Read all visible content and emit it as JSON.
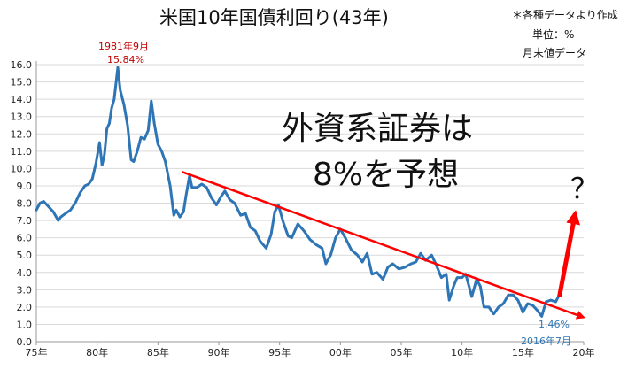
{
  "title": "米国10年国債利回り(43年)",
  "notes": {
    "source": "＊各種データより作成",
    "unit": "単位：%",
    "basis": "月末値データ"
  },
  "callout": {
    "line1": "外資系証券は",
    "line2": "8%を予想",
    "question": "？"
  },
  "annotations": {
    "peak_date": "1981年9月",
    "peak_value": "15.84%",
    "low_value": "1.46%",
    "low_date": "2016年7月"
  },
  "colors": {
    "series": "#2E75B6",
    "trend": "#FF0000",
    "peak_label": "#C00000",
    "low_label": "#2E75B6",
    "grid": "#d9d9d9"
  },
  "chart_data": {
    "type": "line",
    "title": "米国10年国債利回り(43年)",
    "xlabel": "",
    "ylabel": "",
    "xlim": [
      1975,
      2020
    ],
    "ylim": [
      0,
      16
    ],
    "y_ticks": [
      "0.0",
      "1.0",
      "2.0",
      "3.0",
      "4.0",
      "5.0",
      "6.0",
      "7.0",
      "8.0",
      "9.0",
      "10.0",
      "11.0",
      "12.0",
      "13.0",
      "14.0",
      "15.0",
      "16.0"
    ],
    "x_ticks": [
      {
        "x": 1975,
        "label": "75年"
      },
      {
        "x": 1980,
        "label": "80年"
      },
      {
        "x": 1985,
        "label": "85年"
      },
      {
        "x": 1990,
        "label": "90年"
      },
      {
        "x": 1995,
        "label": "95年"
      },
      {
        "x": 2000,
        "label": "00年"
      },
      {
        "x": 2005,
        "label": "05年"
      },
      {
        "x": 2010,
        "label": "10年"
      },
      {
        "x": 2015,
        "label": "15年"
      },
      {
        "x": 2020,
        "label": "20年"
      }
    ],
    "grid": "horizontal",
    "series": [
      {
        "x": [
          1975.0,
          1975.3,
          1975.6,
          1976.0,
          1976.4,
          1976.8,
          1977.0,
          1977.4,
          1977.8,
          1978.2,
          1978.6,
          1979.0,
          1979.3,
          1979.6,
          1979.9,
          1980.2,
          1980.4,
          1980.6,
          1980.8,
          1981.0,
          1981.2,
          1981.4,
          1981.7,
          1981.9,
          1982.2,
          1982.5,
          1982.8,
          1983.0,
          1983.3,
          1983.6,
          1983.9,
          1984.2,
          1984.45,
          1984.7,
          1985.0,
          1985.3,
          1985.6,
          1986.0,
          1986.3,
          1986.5,
          1986.8,
          1987.1,
          1987.3,
          1987.6,
          1987.8,
          1988.2,
          1988.6,
          1989.0,
          1989.4,
          1989.8,
          1990.2,
          1990.5,
          1990.9,
          1991.3,
          1991.8,
          1992.2,
          1992.6,
          1993.0,
          1993.4,
          1993.9,
          1994.3,
          1994.6,
          1994.9,
          1995.3,
          1995.7,
          1996.0,
          1996.5,
          1997.0,
          1997.5,
          1998.0,
          1998.5,
          1998.8,
          1999.2,
          1999.6,
          2000.0,
          2000.4,
          2000.9,
          2001.4,
          2001.8,
          2002.2,
          2002.6,
          2003.0,
          2003.5,
          2003.9,
          2004.3,
          2004.8,
          2005.3,
          2005.8,
          2006.2,
          2006.6,
          2007.0,
          2007.5,
          2007.9,
          2008.3,
          2008.7,
          2008.95,
          2009.3,
          2009.6,
          2010.0,
          2010.3,
          2010.8,
          2011.2,
          2011.5,
          2011.8,
          2012.2,
          2012.6,
          2013.0,
          2013.4,
          2013.8,
          2014.2,
          2014.6,
          2015.0,
          2015.4,
          2015.8,
          2016.2,
          2016.55,
          2016.9,
          2017.3,
          2017.7,
          2018.0
        ],
        "y": [
          7.6,
          8.0,
          8.1,
          7.8,
          7.5,
          7.0,
          7.2,
          7.4,
          7.6,
          8.0,
          8.6,
          9.0,
          9.1,
          9.4,
          10.3,
          11.5,
          10.2,
          10.8,
          12.3,
          12.6,
          13.5,
          14.0,
          15.84,
          14.5,
          13.7,
          12.5,
          10.5,
          10.4,
          11.0,
          11.8,
          11.7,
          12.2,
          13.9,
          12.6,
          11.4,
          11.0,
          10.4,
          9.0,
          7.3,
          7.6,
          7.2,
          7.5,
          8.4,
          9.6,
          8.9,
          8.9,
          9.1,
          8.9,
          8.3,
          7.9,
          8.4,
          8.7,
          8.2,
          8.0,
          7.3,
          7.4,
          6.6,
          6.4,
          5.8,
          5.4,
          6.2,
          7.5,
          7.9,
          6.9,
          6.1,
          6.0,
          6.8,
          6.4,
          5.9,
          5.6,
          5.4,
          4.5,
          5.0,
          6.0,
          6.5,
          6.0,
          5.3,
          5.0,
          4.6,
          5.1,
          3.9,
          4.0,
          3.6,
          4.3,
          4.5,
          4.2,
          4.3,
          4.5,
          4.6,
          5.1,
          4.7,
          5.0,
          4.4,
          3.7,
          3.9,
          2.4,
          3.2,
          3.7,
          3.7,
          3.9,
          2.6,
          3.6,
          3.2,
          2.0,
          2.0,
          1.6,
          2.0,
          2.2,
          2.7,
          2.7,
          2.4,
          1.7,
          2.2,
          2.1,
          1.8,
          1.46,
          2.3,
          2.4,
          2.3,
          2.7
        ]
      }
    ],
    "trend_line": {
      "x": [
        1987.0,
        2020.0
      ],
      "y": [
        9.8,
        1.4
      ]
    },
    "forecast_arrow": {
      "x": [
        2018.0,
        2019.3
      ],
      "y": [
        2.6,
        7.4
      ]
    }
  }
}
